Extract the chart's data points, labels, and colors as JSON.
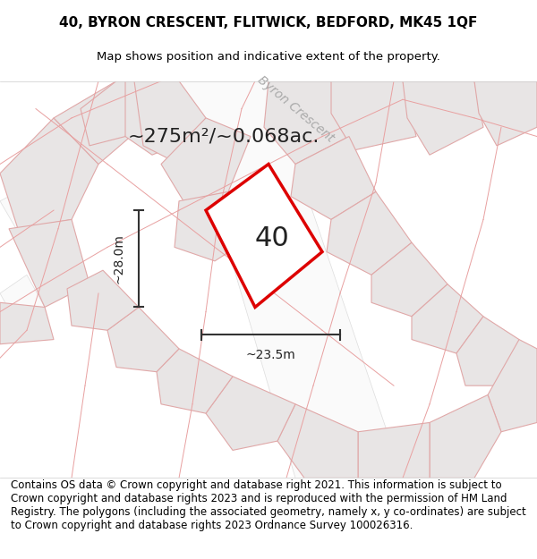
{
  "title_line1": "40, BYRON CRESCENT, FLITWICK, BEDFORD, MK45 1QF",
  "title_line2": "Map shows position and indicative extent of the property.",
  "footer_text": "Contains OS data © Crown copyright and database right 2021. This information is subject to Crown copyright and database rights 2023 and is reproduced with the permission of HM Land Registry. The polygons (including the associated geometry, namely x, y co-ordinates) are subject to Crown copyright and database rights 2023 Ordnance Survey 100026316.",
  "bg_color": "#f0eeee",
  "map_bg": "#f2f0f0",
  "road_color": "#ffffff",
  "plot_outline_color": "#cc0000",
  "building_fill": "#e8e6e6",
  "building_stroke": "#e8b8b8",
  "area_text": "~275m²/~0.068ac.",
  "number_text": "40",
  "dim_width": "~23.5m",
  "dim_height": "~28.0m",
  "street_name": "Byron Crescent",
  "title_fontsize": 11,
  "footer_fontsize": 8.5,
  "map_region": [
    0.0,
    0.08,
    1.0,
    0.78
  ]
}
